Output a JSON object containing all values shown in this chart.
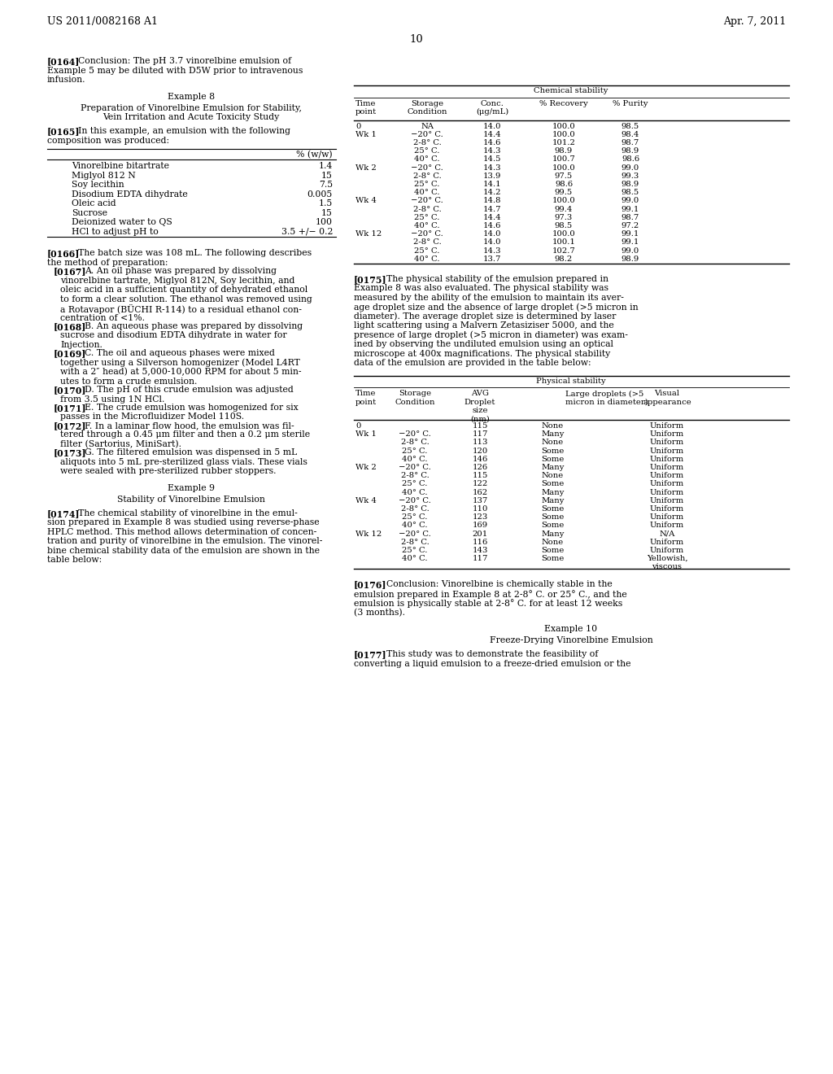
{
  "page_number": "10",
  "header_left": "US 2011/0082168 A1",
  "header_right": "Apr. 7, 2011",
  "left_blocks": [
    {
      "type": "para",
      "tag": "[0164]",
      "text": "Conclusion: The pH 3.7 vinorelbine emulsion of\nExample 5 may be diluted with D5W prior to intravenous\ninfusion."
    },
    {
      "type": "center_title",
      "text": "Example 8"
    },
    {
      "type": "center_title",
      "text": "Preparation of Vinorelbine Emulsion for Stability,\nVein Irritation and Acute Toxicity Study"
    },
    {
      "type": "para",
      "tag": "[0165]",
      "text": "In this example, an emulsion with the following\ncomposition was produced:"
    },
    {
      "type": "comp_table"
    },
    {
      "type": "para",
      "tag": "[0166]",
      "text": "The batch size was 108 mL. The following describes\nthe method of preparation:"
    },
    {
      "type": "para",
      "tag": "[0167]",
      "text": "A. An oil phase was prepared by dissolving\nvinorelbine tartrate, Miglyol 812N, Soy lecithin, and\noleic acid in a sufficient quantity of dehydrated ethanol\nto form a clear solution. The ethanol was removed using\na Rotavapor (BÜCHI R-114) to a residual ethanol con-\ncentration of <1%."
    },
    {
      "type": "para",
      "tag": "[0168]",
      "text": "B. An aqueous phase was prepared by dissolving\nsucrose and disodium EDTA dihydrate in water for\nInjection."
    },
    {
      "type": "para",
      "tag": "[0169]",
      "text": "C. The oil and aqueous phases were mixed\ntogether using a Silverson homogenizer (Model L4RT\nwith a 2″ head) at 5,000-10,000 RPM for about 5 min-\nutes to form a crude emulsion."
    },
    {
      "type": "para",
      "tag": "[0170]",
      "text": "D. The pH of this crude emulsion was adjusted\nfrom 3.5 using 1N HCl."
    },
    {
      "type": "para",
      "tag": "[0171]",
      "text": "E. The crude emulsion was homogenized for six\npasses in the Microfluidizer Model 110S."
    },
    {
      "type": "para",
      "tag": "[0172]",
      "text": "F. In a laminar flow hood, the emulsion was fil-\ntered through a 0.45 μm filter and then a 0.2 μm sterile\nfilter (Sartorius, MiniSart)."
    },
    {
      "type": "para",
      "tag": "[0173]",
      "text": "G. The filtered emulsion was dispensed in 5 mL\naliquots into 5 mL pre-sterilized glass vials. These vials\nwere sealed with pre-sterilized rubber stoppers."
    },
    {
      "type": "center_title",
      "text": "Example 9"
    },
    {
      "type": "center_title",
      "text": "Stability of Vinorelbine Emulsion"
    },
    {
      "type": "para",
      "tag": "[0174]",
      "text": "The chemical stability of vinorelbine in the emul-\nsion prepared in Example 8 was studied using reverse-phase\nHPLC method. This method allows determination of concen-\ntration and purity of vinorelbine in the emulsion. The vinorel-\nbine chemical stability data of the emulsion are shown in the\ntable below:"
    }
  ],
  "right_blocks": [
    {
      "type": "para",
      "tag": "[0176]",
      "text": "Conclusion: Vinorelbine is chemically stable in the\nemulsion prepared in Example 8 at 2-8° C. or 25° C., and the\nemulsion is physically stable at 2-8° C. for at least 12 weeks\n(3 months)."
    },
    {
      "type": "center_title",
      "text": "Example 10"
    },
    {
      "type": "center_title",
      "text": "Freeze-Drying Vinorelbine Emulsion"
    },
    {
      "type": "para",
      "tag": "[0177]",
      "text": "This study was to demonstrate the feasibility of\nconverting a liquid emulsion to a freeze-dried emulsion or the"
    }
  ],
  "composition_rows": [
    [
      "Vinorelbine bitartrate",
      "1.4"
    ],
    [
      "Miglyol 812 N",
      "15"
    ],
    [
      "Soy lecithin",
      "7.5"
    ],
    [
      "Disodium EDTA dihydrate",
      "0.005"
    ],
    [
      "Oleic acid",
      "1.5"
    ],
    [
      "Sucrose",
      "15"
    ],
    [
      "Deionized water to QS",
      "100"
    ],
    [
      "HCl to adjust pH to",
      "3.5 +/− 0.2"
    ]
  ],
  "chem_table_rows": [
    [
      "0",
      "NA",
      "14.0",
      "100.0",
      "98.5"
    ],
    [
      "Wk 1",
      "−20° C.",
      "14.4",
      "100.0",
      "98.4"
    ],
    [
      "",
      "2-8° C.",
      "14.6",
      "101.2",
      "98.7"
    ],
    [
      "",
      "25° C.",
      "14.3",
      "98.9",
      "98.9"
    ],
    [
      "",
      "40° C.",
      "14.5",
      "100.7",
      "98.6"
    ],
    [
      "Wk 2",
      "−20° C.",
      "14.3",
      "100.0",
      "99.0"
    ],
    [
      "",
      "2-8° C.",
      "13.9",
      "97.5",
      "99.3"
    ],
    [
      "",
      "25° C.",
      "14.1",
      "98.6",
      "98.9"
    ],
    [
      "",
      "40° C.",
      "14.2",
      "99.5",
      "98.5"
    ],
    [
      "Wk 4",
      "−20° C.",
      "14.8",
      "100.0",
      "99.0"
    ],
    [
      "",
      "2-8° C.",
      "14.7",
      "99.4",
      "99.1"
    ],
    [
      "",
      "25° C.",
      "14.4",
      "97.3",
      "98.7"
    ],
    [
      "",
      "40° C.",
      "14.6",
      "98.5",
      "97.2"
    ],
    [
      "Wk 12",
      "−20° C.",
      "14.0",
      "100.0",
      "99.1"
    ],
    [
      "",
      "2-8° C.",
      "14.0",
      "100.1",
      "99.1"
    ],
    [
      "",
      "25° C.",
      "14.3",
      "102.7",
      "99.0"
    ],
    [
      "",
      "40° C.",
      "13.7",
      "98.2",
      "98.9"
    ]
  ],
  "phys_table_rows": [
    [
      "0",
      "",
      "115",
      "None",
      "Uniform"
    ],
    [
      "Wk 1",
      "−20° C.",
      "117",
      "Many",
      "Uniform"
    ],
    [
      "",
      "2-8° C.",
      "113",
      "None",
      "Uniform"
    ],
    [
      "",
      "25° C.",
      "120",
      "Some",
      "Uniform"
    ],
    [
      "",
      "40° C.",
      "146",
      "Some",
      "Uniform"
    ],
    [
      "Wk 2",
      "−20° C.",
      "126",
      "Many",
      "Uniform"
    ],
    [
      "",
      "2-8° C.",
      "115",
      "None",
      "Uniform"
    ],
    [
      "",
      "25° C.",
      "122",
      "Some",
      "Uniform"
    ],
    [
      "",
      "40° C.",
      "162",
      "Many",
      "Uniform"
    ],
    [
      "Wk 4",
      "−20° C.",
      "137",
      "Many",
      "Uniform"
    ],
    [
      "",
      "2-8° C.",
      "110",
      "Some",
      "Uniform"
    ],
    [
      "",
      "25° C.",
      "123",
      "Some",
      "Uniform"
    ],
    [
      "",
      "40° C.",
      "169",
      "Some",
      "Uniform"
    ],
    [
      "Wk 12",
      "−20° C.",
      "201",
      "Many",
      "N/A"
    ],
    [
      "",
      "2-8° C.",
      "116",
      "None",
      "Uniform"
    ],
    [
      "",
      "25° C.",
      "143",
      "Some",
      "Uniform"
    ],
    [
      "",
      "40° C.",
      "117",
      "Some",
      "Yellowish,\nviscous"
    ]
  ],
  "para175": "[0175]   The physical stability of the emulsion prepared in\nExample 8 was also evaluated. The physical stability was\nmeasured by the ability of the emulsion to maintain its aver-\nage droplet size and the absence of large droplet (>5 micron in\ndiameter). The average droplet size is determined by laser\nlight scattering using a Malvern Zetasiziser 5000, and the\npresence of large droplet (>5 micron in diameter) was exam-\nined by observing the undiluted emulsion using an optical\nmicroscope at 400x magnifications. The physical stability\ndata of the emulsion are provided in the table below:"
}
